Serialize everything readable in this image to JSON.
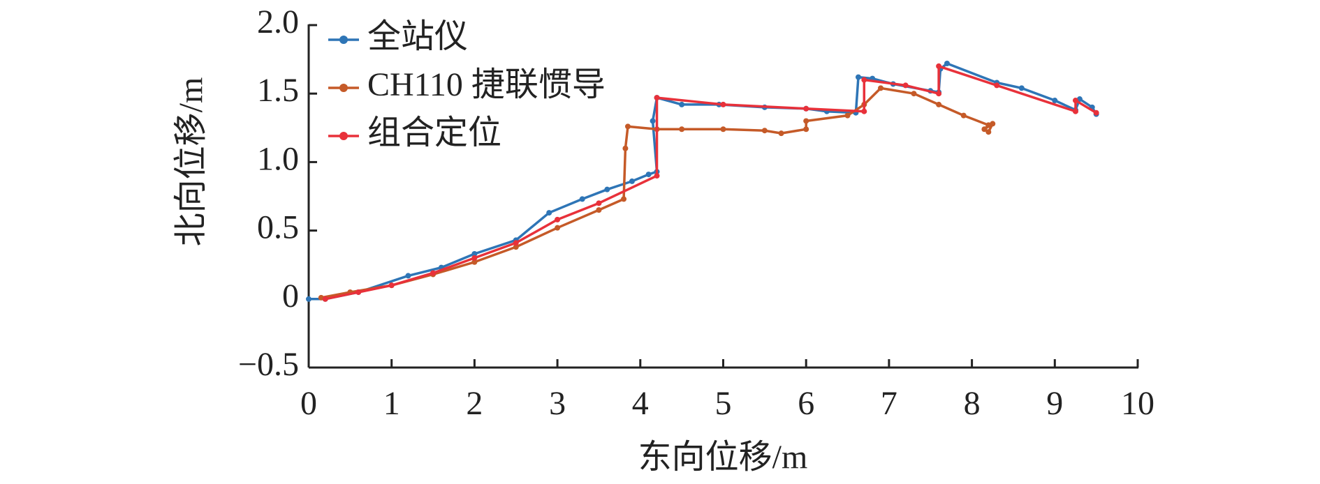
{
  "chart_data": {
    "type": "line",
    "xlabel": "东向位移/m",
    "ylabel": "北向位移/m",
    "xlim": [
      0,
      10
    ],
    "ylim": [
      -0.5,
      2
    ],
    "xticks": [
      0,
      1,
      2,
      3,
      4,
      5,
      6,
      7,
      8,
      9,
      10
    ],
    "yticks": [
      {
        "value": -0.5,
        "label": "−0.5"
      },
      0,
      0.5,
      {
        "value": 1,
        "label": "1.0"
      },
      1.5,
      {
        "value": 2,
        "label": "2.0"
      }
    ],
    "legend": "upper left",
    "series": [
      {
        "name": "全站仪",
        "color": "#2e75b6",
        "x": [
          0,
          0.2,
          0.6,
          1.2,
          1.6,
          2,
          2.5,
          2.9,
          3.3,
          3.6,
          3.9,
          4.1,
          4.2,
          4.15,
          4.2,
          4.5,
          4.95,
          5.5,
          6.0,
          6.25,
          6.6,
          6.63,
          6.8,
          7.05,
          7.5,
          7.6,
          7.62,
          7.7,
          8.3,
          8.6,
          9.0,
          9.25,
          9.3,
          9.45,
          9.5
        ],
        "values": [
          0,
          0,
          0.05,
          0.17,
          0.23,
          0.33,
          0.43,
          0.63,
          0.73,
          0.8,
          0.86,
          0.91,
          0.93,
          1.3,
          1.47,
          1.42,
          1.42,
          1.4,
          1.39,
          1.37,
          1.36,
          1.62,
          1.61,
          1.57,
          1.52,
          1.51,
          1.68,
          1.72,
          1.58,
          1.54,
          1.45,
          1.38,
          1.46,
          1.4,
          1.35
        ]
      },
      {
        "name": "CH110 捷联惯导",
        "color": "#c55a28",
        "x": [
          0.15,
          0.5,
          1,
          1.5,
          2,
          2.5,
          3,
          3.5,
          3.8,
          3.82,
          3.85,
          4.2,
          4.5,
          5,
          5.5,
          5.7,
          6,
          6,
          6.5,
          6.7,
          6.9,
          7.3,
          7.6,
          7.9,
          8.2,
          8.15,
          8.25,
          8.2
        ],
        "values": [
          0.01,
          0.05,
          0.1,
          0.18,
          0.27,
          0.38,
          0.52,
          0.65,
          0.73,
          1.1,
          1.26,
          1.24,
          1.24,
          1.24,
          1.23,
          1.21,
          1.24,
          1.3,
          1.34,
          1.42,
          1.54,
          1.5,
          1.42,
          1.34,
          1.27,
          1.24,
          1.28,
          1.22
        ]
      },
      {
        "name": "组合定位",
        "color": "#e8313a",
        "x": [
          0.2,
          0.6,
          1,
          1.5,
          2,
          2.5,
          3,
          3.5,
          4.2,
          4.2,
          5,
          6,
          6.7,
          6.7,
          7.2,
          7.6,
          7.6,
          8.3,
          9.25,
          9.25,
          9.5
        ],
        "values": [
          0,
          0.05,
          0.1,
          0.19,
          0.3,
          0.41,
          0.58,
          0.7,
          0.9,
          1.47,
          1.42,
          1.39,
          1.37,
          1.6,
          1.56,
          1.5,
          1.7,
          1.56,
          1.37,
          1.45,
          1.36
        ]
      }
    ]
  }
}
